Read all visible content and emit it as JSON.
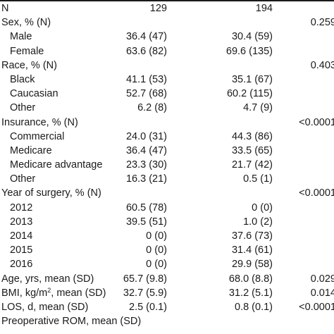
{
  "rows": [
    {
      "label": "N",
      "col1": "129",
      "col2": "194",
      "p": "",
      "indent": false
    },
    {
      "label": "Sex, % (N)",
      "col1": "",
      "col2": "",
      "p": "0.259",
      "indent": false
    },
    {
      "label": "Male",
      "col1": "36.4 (47)",
      "col2": "30.4 (59)",
      "p": "",
      "indent": true
    },
    {
      "label": "Female",
      "col1": "63.6 (82)",
      "col2": "69.6 (135)",
      "p": "",
      "indent": true
    },
    {
      "label": "Race, % (N)",
      "col1": "",
      "col2": "",
      "p": "0.403",
      "indent": false
    },
    {
      "label": "Black",
      "col1": "41.1 (53)",
      "col2": "35.1 (67)",
      "p": "",
      "indent": true
    },
    {
      "label": "Caucasian",
      "col1": "52.7 (68)",
      "col2": "60.2 (115)",
      "p": "",
      "indent": true
    },
    {
      "label": "Other",
      "col1": "6.2 (8)",
      "col2": "4.7 (9)",
      "p": "",
      "indent": true
    },
    {
      "label": "Insurance, % (N)",
      "col1": "",
      "col2": "",
      "p": "<0.0001",
      "indent": false
    },
    {
      "label": "Commercial",
      "col1": "24.0 (31)",
      "col2": "44.3 (86)",
      "p": "",
      "indent": true
    },
    {
      "label": "Medicare",
      "col1": "36.4 (47)",
      "col2": "33.5 (65)",
      "p": "",
      "indent": true
    },
    {
      "label": "Medicare advantage",
      "col1": "23.3 (30)",
      "col2": "21.7 (42)",
      "p": "",
      "indent": true
    },
    {
      "label": "Other",
      "col1": "16.3 (21)",
      "col2": "0.5 (1)",
      "p": "",
      "indent": true
    },
    {
      "label": "Year of surgery, % (N)",
      "col1": "",
      "col2": "",
      "p": "<0.0001",
      "indent": false
    },
    {
      "label": "2012",
      "col1": "60.5 (78)",
      "col2": "0 (0)",
      "p": "",
      "indent": true
    },
    {
      "label": "2013",
      "col1": "39.5 (51)",
      "col2": "1.0 (2)",
      "p": "",
      "indent": true
    },
    {
      "label": "2014",
      "col1": "0 (0)",
      "col2": "37.6 (73)",
      "p": "",
      "indent": true
    },
    {
      "label": "2015",
      "col1": "0 (0)",
      "col2": "31.4 (61)",
      "p": "",
      "indent": true
    },
    {
      "label": "2016",
      "col1": "0 (0)",
      "col2": "29.9 (58)",
      "p": "",
      "indent": true
    },
    {
      "label": "Age, yrs, mean (SD)",
      "col1": "65.7 (9.8)",
      "col2": "68.0 (8.8)",
      "p": "0.029",
      "indent": false
    },
    {
      "label": "BMI, kg/m",
      "label_sup": "2",
      "label_after": ", mean (SD)",
      "col1": "32.7 (5.9)",
      "col2": "31.2 (5.1)",
      "p": "0.014",
      "indent": false
    },
    {
      "label": "LOS, d, mean (SD)",
      "col1": "2.5 (0.1)",
      "col2": "0.8 (0.1)",
      "p": "<0.0001",
      "indent": false
    },
    {
      "label": "Preoperative ROM, mean (SD)",
      "col1": "",
      "col2": "",
      "p": "",
      "indent": false
    }
  ]
}
